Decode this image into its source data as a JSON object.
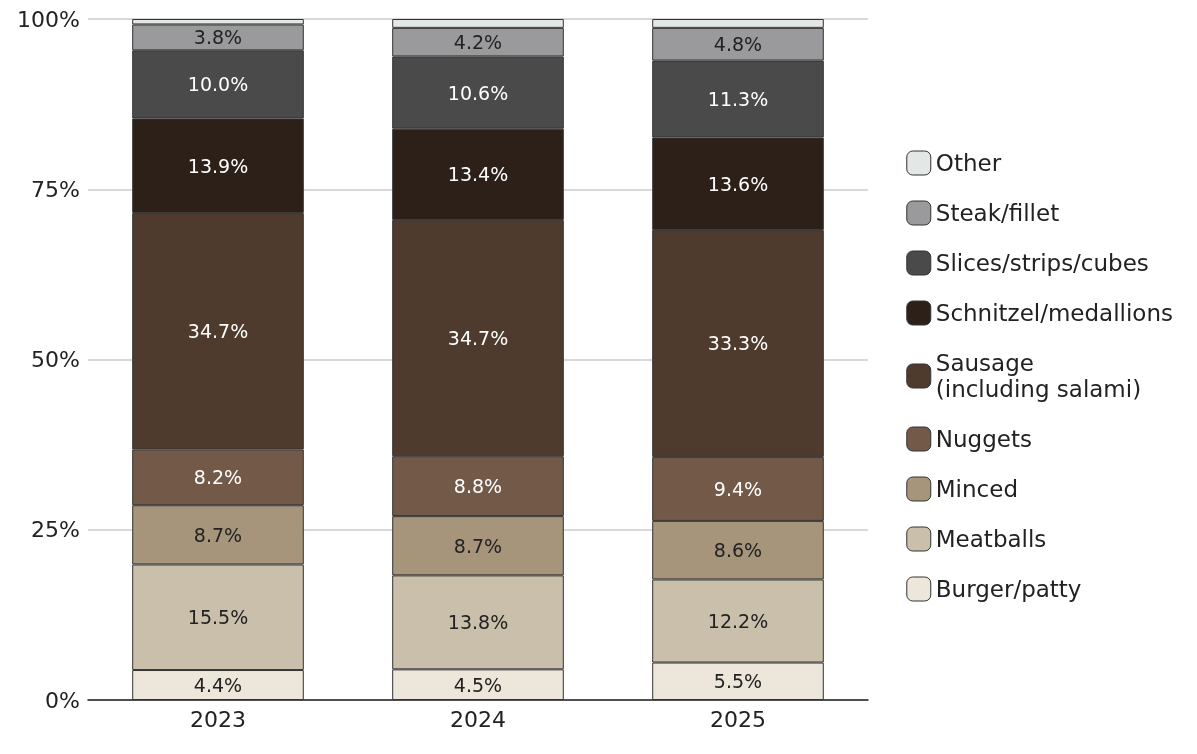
{
  "chart_data": {
    "type": "bar",
    "stacked": true,
    "categories": [
      "2023",
      "2024",
      "2025"
    ],
    "series": [
      {
        "name": "Burger/patty",
        "color": "#ede6da",
        "values": [
          4.4,
          4.5,
          5.5
        ],
        "value_labels": [
          "4.4%",
          "4.5%",
          "5.5%"
        ]
      },
      {
        "name": "Meatballs",
        "color": "#c9bfaa",
        "values": [
          15.5,
          13.8,
          12.2
        ],
        "value_labels": [
          "15.5%",
          "13.8%",
          "12.2%"
        ]
      },
      {
        "name": "Minced",
        "color": "#a6957b",
        "values": [
          8.7,
          8.7,
          8.6
        ],
        "value_labels": [
          "8.7%",
          "8.7%",
          "8.6%"
        ]
      },
      {
        "name": "Nuggets",
        "color": "#735a48",
        "values": [
          8.2,
          8.8,
          9.4
        ],
        "value_labels": [
          "8.2%",
          "8.8%",
          "9.4%"
        ]
      },
      {
        "name": "Sausage\n(including salami)",
        "color": "#4f3b2d",
        "values": [
          34.7,
          34.7,
          33.3
        ],
        "value_labels": [
          "34.7%",
          "34.7%",
          "33.3%"
        ]
      },
      {
        "name": "Schnitzel/medallions",
        "color": "#2d2018",
        "values": [
          13.9,
          13.4,
          13.6
        ],
        "value_labels": [
          "13.9%",
          "13.4%",
          "13.6%"
        ]
      },
      {
        "name": "Slices/strips/cubes",
        "color": "#4a4a4a",
        "values": [
          10.0,
          10.6,
          11.3
        ],
        "value_labels": [
          "10.0%",
          "10.6%",
          "11.3%"
        ]
      },
      {
        "name": "Steak/fillet",
        "color": "#9a999c",
        "values": [
          3.8,
          4.2,
          4.8
        ],
        "value_labels": [
          "3.8%",
          "4.2%",
          "4.8%"
        ]
      },
      {
        "name": "Other",
        "color": "#e3e7e6",
        "values": [
          0.8,
          1.3,
          1.3
        ],
        "value_labels": [
          null,
          null,
          null
        ]
      }
    ],
    "ylim": [
      0,
      100
    ],
    "yticks": [
      {
        "value": 0,
        "label": "0%"
      },
      {
        "value": 25,
        "label": "25%"
      },
      {
        "value": 50,
        "label": "50%"
      },
      {
        "value": 75,
        "label": "75%"
      },
      {
        "value": 100,
        "label": "100%"
      }
    ],
    "grid": "y",
    "legend": "right"
  }
}
